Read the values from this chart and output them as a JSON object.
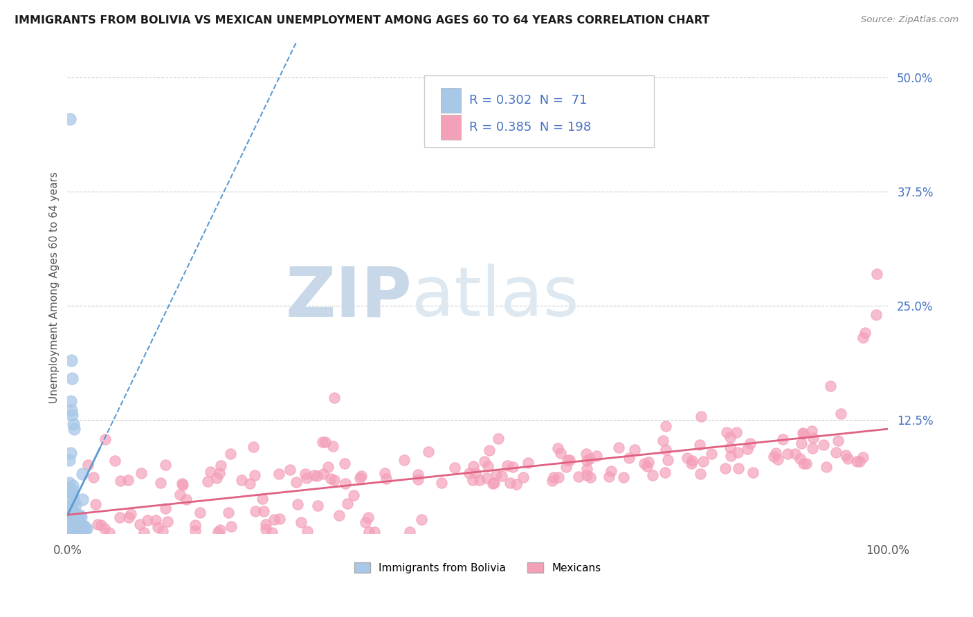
{
  "title": "IMMIGRANTS FROM BOLIVIA VS MEXICAN UNEMPLOYMENT AMONG AGES 60 TO 64 YEARS CORRELATION CHART",
  "source": "Source: ZipAtlas.com",
  "ylabel": "Unemployment Among Ages 60 to 64 years",
  "xlim": [
    0.0,
    1.0
  ],
  "ylim": [
    0.0,
    0.54
  ],
  "xtick_labels": [
    "0.0%",
    "100.0%"
  ],
  "ytick_labels_right": [
    "50.0%",
    "37.5%",
    "25.0%",
    "12.5%"
  ],
  "ytick_vals_right": [
    0.5,
    0.375,
    0.25,
    0.125
  ],
  "bolivia_R": 0.302,
  "bolivia_N": 71,
  "mexico_R": 0.385,
  "mexico_N": 198,
  "bolivia_color": "#a8c8e8",
  "mexico_color": "#f4a0b8",
  "bolivia_line_color": "#5b9bd5",
  "mexico_line_color": "#e06080",
  "watermark_zip": "ZIP",
  "watermark_atlas": "atlas",
  "watermark_color": "#dde8f0",
  "legend_label_bolivia": "Immigrants from Bolivia",
  "legend_label_mexico": "Mexicans"
}
